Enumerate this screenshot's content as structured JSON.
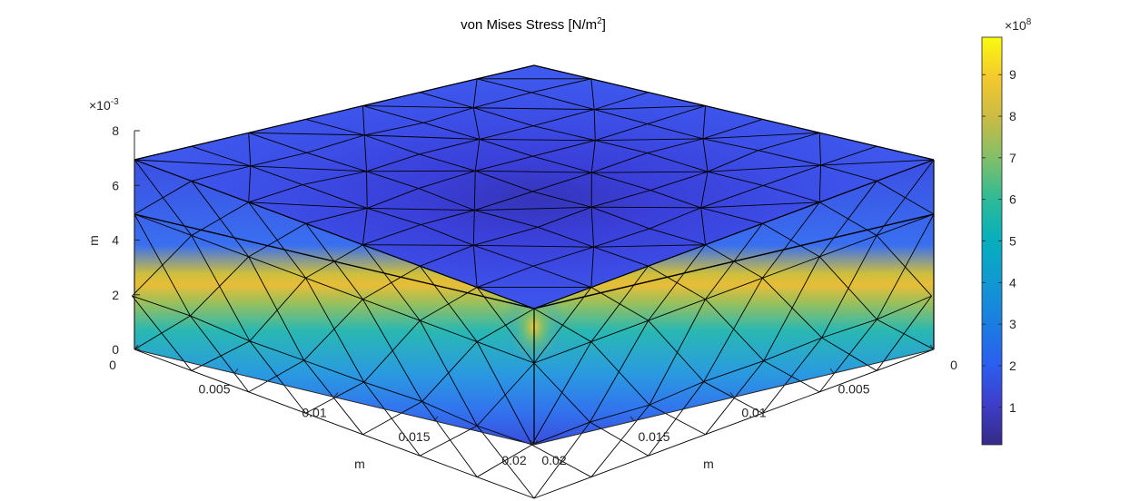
{
  "chart_data": {
    "type": "surface-3d",
    "title": "von Mises Stress [N/m",
    "title_sup": "2",
    "title_end": "]",
    "xlabel": "m",
    "ylabel": "m",
    "zlabel": "m",
    "xlim": [
      0,
      0.02
    ],
    "ylim": [
      0,
      0.02
    ],
    "zlim": [
      0,
      0.008
    ],
    "x_ticks": [
      "0",
      "0.005",
      "0.01",
      "0.015",
      "0.02"
    ],
    "y_ticks": [
      "0.02",
      "0.015",
      "0.01",
      "0.005",
      "0"
    ],
    "z_ticks": [
      "0",
      "2",
      "4",
      "6",
      "8"
    ],
    "z_exponent_base": "×10",
    "z_exponent": "-3",
    "colorbar": {
      "colormap": "parula",
      "ticks": [
        "1",
        "2",
        "3",
        "4",
        "5",
        "6",
        "7",
        "8",
        "9"
      ],
      "tick_values": [
        1,
        2,
        3,
        4,
        5,
        6,
        7,
        8,
        9
      ],
      "min": 0.1,
      "max": 9.9,
      "exponent_base": "×10",
      "exponent": "8"
    },
    "block": {
      "height": 0.007,
      "interface_height": 0.005
    },
    "colors": {
      "low": "#3f2ecf",
      "mid": "#3a8ff0",
      "band": "#e9bd3a",
      "peak": "#f9fa15"
    }
  }
}
